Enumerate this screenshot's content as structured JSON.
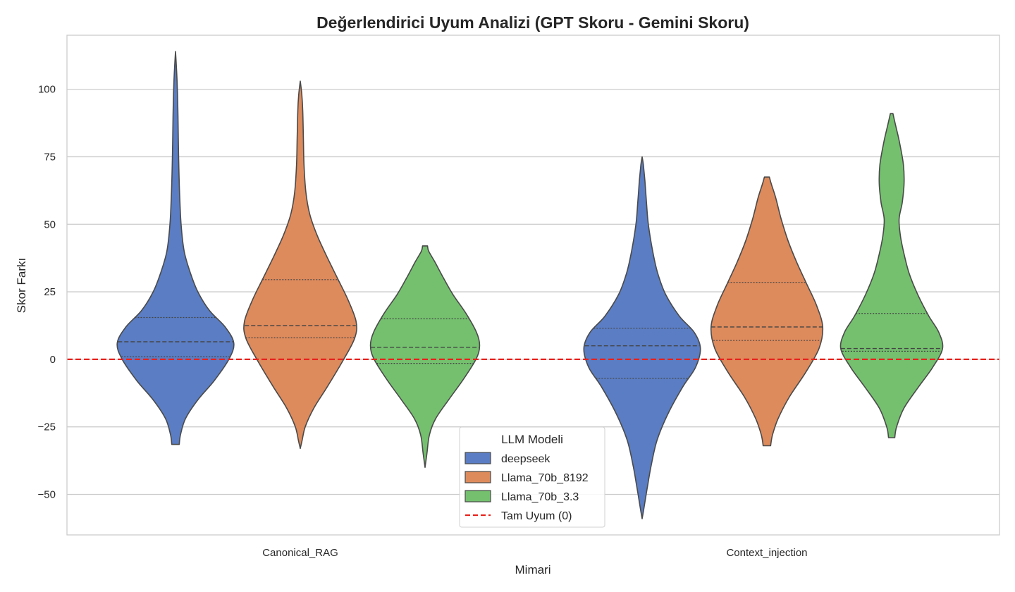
{
  "chart_data": {
    "type": "violin",
    "title": "Değerlendirici Uyum Analizi (GPT Skoru - Gemini Skoru)",
    "xlabel": "Mimari",
    "ylabel": "Skor Farkı",
    "ylim": [
      -65,
      120
    ],
    "yticks": [
      -50,
      -25,
      0,
      25,
      50,
      75,
      100
    ],
    "ytick_labels": [
      "−50",
      "−25",
      "0",
      "25",
      "50",
      "75",
      "100"
    ],
    "grid": true,
    "categories": [
      "Canonical_RAG",
      "Context_injection"
    ],
    "reference_line": {
      "value": 0,
      "label": "Tam Uyum (0)",
      "color": "#e8221c",
      "style": "dashed"
    },
    "legend": {
      "title": "LLM Modeli",
      "placement": "lower-center"
    },
    "series": [
      {
        "name": "deepseek",
        "color": "#5a7dc4",
        "violins": [
          {
            "category": "Canonical_RAG",
            "min": -31.5,
            "max": 114,
            "quartiles": [
              1,
              6.5,
              15.5
            ],
            "profile": [
              [
                -31.5,
                0.06
              ],
              [
                -28,
                0.08
              ],
              [
                -22,
                0.16
              ],
              [
                -15,
                0.36
              ],
              [
                -8,
                0.62
              ],
              [
                0,
                0.86
              ],
              [
                6,
                0.94
              ],
              [
                12,
                0.8
              ],
              [
                18,
                0.55
              ],
              [
                25,
                0.36
              ],
              [
                32,
                0.24
              ],
              [
                40,
                0.14
              ],
              [
                50,
                0.09
              ],
              [
                62,
                0.065
              ],
              [
                75,
                0.05
              ],
              [
                90,
                0.04
              ],
              [
                100,
                0.03
              ],
              [
                108,
                0.015
              ],
              [
                114,
                0.0
              ]
            ]
          },
          {
            "category": "Context_injection",
            "min": -59,
            "max": 75,
            "quartiles": [
              -7,
              5,
              11.5
            ],
            "profile": [
              [
                -59,
                0.0
              ],
              [
                -55,
                0.03
              ],
              [
                -48,
                0.08
              ],
              [
                -40,
                0.14
              ],
              [
                -30,
                0.24
              ],
              [
                -20,
                0.42
              ],
              [
                -10,
                0.66
              ],
              [
                -3,
                0.86
              ],
              [
                4,
                0.94
              ],
              [
                10,
                0.84
              ],
              [
                16,
                0.6
              ],
              [
                24,
                0.38
              ],
              [
                32,
                0.25
              ],
              [
                40,
                0.17
              ],
              [
                50,
                0.1
              ],
              [
                58,
                0.07
              ],
              [
                66,
                0.045
              ],
              [
                72,
                0.02
              ],
              [
                75,
                0.0
              ]
            ]
          }
        ]
      },
      {
        "name": "Llama_70b_8192",
        "color": "#dd8a5c",
        "violins": [
          {
            "category": "Canonical_RAG",
            "min": -33,
            "max": 103,
            "quartiles": [
              8,
              12.5,
              29.5
            ],
            "profile": [
              [
                -33,
                0.0
              ],
              [
                -30,
                0.03
              ],
              [
                -25,
                0.08
              ],
              [
                -18,
                0.22
              ],
              [
                -10,
                0.44
              ],
              [
                0,
                0.7
              ],
              [
                8,
                0.88
              ],
              [
                14,
                0.9
              ],
              [
                22,
                0.77
              ],
              [
                30,
                0.6
              ],
              [
                38,
                0.43
              ],
              [
                46,
                0.27
              ],
              [
                54,
                0.15
              ],
              [
                62,
                0.09
              ],
              [
                72,
                0.06
              ],
              [
                82,
                0.05
              ],
              [
                92,
                0.04
              ],
              [
                98,
                0.025
              ],
              [
                103,
                0.0
              ]
            ]
          },
          {
            "category": "Context_injection",
            "min": -32,
            "max": 67.5,
            "quartiles": [
              7,
              12,
              28.5
            ],
            "profile": [
              [
                -32,
                0.06
              ],
              [
                -28,
                0.09
              ],
              [
                -22,
                0.18
              ],
              [
                -14,
                0.36
              ],
              [
                -5,
                0.62
              ],
              [
                4,
                0.84
              ],
              [
                12,
                0.9
              ],
              [
                20,
                0.8
              ],
              [
                28,
                0.64
              ],
              [
                36,
                0.48
              ],
              [
                44,
                0.34
              ],
              [
                52,
                0.23
              ],
              [
                60,
                0.14
              ],
              [
                65,
                0.07
              ],
              [
                67.5,
                0.04
              ]
            ]
          }
        ]
      },
      {
        "name": "Llama_70b_3.3",
        "color": "#74c06e",
        "violins": [
          {
            "category": "Canonical_RAG",
            "min": -40,
            "max": 42,
            "quartiles": [
              -1.5,
              4.5,
              15
            ],
            "profile": [
              [
                -40,
                0.0
              ],
              [
                -35,
                0.03
              ],
              [
                -28,
                0.07
              ],
              [
                -22,
                0.17
              ],
              [
                -15,
                0.38
              ],
              [
                -8,
                0.6
              ],
              [
                0,
                0.82
              ],
              [
                5,
                0.88
              ],
              [
                10,
                0.83
              ],
              [
                17,
                0.66
              ],
              [
                24,
                0.45
              ],
              [
                30,
                0.3
              ],
              [
                36,
                0.16
              ],
              [
                40,
                0.06
              ],
              [
                42,
                0.04
              ]
            ]
          },
          {
            "category": "Context_injection",
            "min": -29,
            "max": 91,
            "quartiles": [
              3,
              4,
              17
            ],
            "profile": [
              [
                -29,
                0.05
              ],
              [
                -25,
                0.08
              ],
              [
                -18,
                0.2
              ],
              [
                -10,
                0.44
              ],
              [
                -3,
                0.66
              ],
              [
                4,
                0.82
              ],
              [
                10,
                0.76
              ],
              [
                16,
                0.6
              ],
              [
                24,
                0.42
              ],
              [
                32,
                0.28
              ],
              [
                40,
                0.19
              ],
              [
                46,
                0.14
              ],
              [
                52,
                0.12
              ],
              [
                58,
                0.17
              ],
              [
                65,
                0.2
              ],
              [
                72,
                0.19
              ],
              [
                80,
                0.13
              ],
              [
                86,
                0.07
              ],
              [
                91,
                0.02
              ]
            ]
          }
        ]
      }
    ]
  }
}
